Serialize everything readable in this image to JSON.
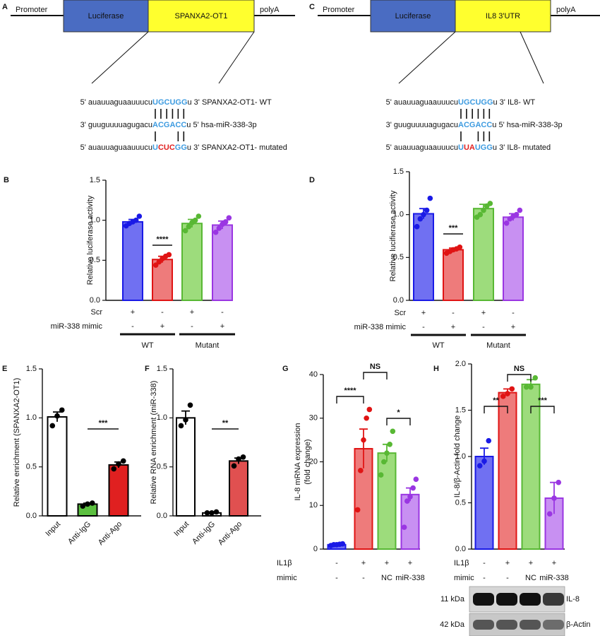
{
  "constructs": [
    {
      "label": "A",
      "promoter": "Promoter",
      "reporter": "Luciferase",
      "insert": "SPANXA2-OT1",
      "polyA": "polyA",
      "sequences": [
        {
          "prefix": "5' auauuaguaauuucu",
          "core": [
            {
              "text": "UGCUGG",
              "color": "#3d9be0"
            }
          ],
          "suffix": "u 3' SPANXA2-OT1- WT"
        },
        {
          "prefix": "3' guuguuuuagugacu",
          "core": [
            {
              "text": "ACGACC",
              "color": "#3d9be0"
            }
          ],
          "suffix": "u 5' hsa-miR-338-3p"
        },
        {
          "prefix": "5' auauuaguaauuucu",
          "core": [
            {
              "text": "U",
              "color": "#3d9be0"
            },
            {
              "text": "CUC",
              "color": "#e02020"
            },
            {
              "text": "GG",
              "color": "#3d9be0"
            }
          ],
          "suffix": "u 3' SPANXA2-OT1- mutated"
        }
      ]
    },
    {
      "label": "C",
      "promoter": "Promoter",
      "reporter": "Luciferase",
      "insert": "IL8 3'UTR",
      "polyA": "polyA",
      "sequences": [
        {
          "prefix": "5' auauuaguaauuucu",
          "core": [
            {
              "text": "UGCUGG",
              "color": "#3d9be0"
            }
          ],
          "suffix": "u 3' IL8- WT"
        },
        {
          "prefix": "3' guuguuuuagugacu",
          "core": [
            {
              "text": "ACGACC",
              "color": "#3d9be0"
            }
          ],
          "suffix": "u 5' hsa-miR-338-3p"
        },
        {
          "prefix": "5' auauuaguaauuucu",
          "core": [
            {
              "text": "U",
              "color": "#3d9be0"
            },
            {
              "text": "UA",
              "color": "#e02020"
            },
            {
              "text": "UGG",
              "color": "#3d9be0"
            }
          ],
          "suffix": "u 3' IL8- mutated"
        }
      ]
    }
  ],
  "chart_data": [
    {
      "type": "bar",
      "label": "B",
      "ylabel": [
        "Relative luciferase activity"
      ],
      "ylim": [
        0,
        1.5
      ],
      "yticks": [
        {
          "value": 0,
          "label": "0.0"
        },
        0.5,
        {
          "value": 1,
          "label": "1.0"
        },
        1.5
      ],
      "values": [
        0.98,
        0.51,
        0.96,
        0.94
      ],
      "errors": [
        0.03,
        0.04,
        0.05,
        0.05
      ],
      "points": [
        [
          0.93,
          0.96,
          0.98,
          1.0,
          1.05
        ],
        [
          0.44,
          0.48,
          0.52,
          0.55,
          0.57
        ],
        [
          0.87,
          0.92,
          0.97,
          1.0,
          1.05
        ],
        [
          0.85,
          0.9,
          0.95,
          0.98,
          1.03
        ]
      ],
      "colors": [
        "#7070f2",
        "#ee7b7b",
        "#9ddc7c",
        "#c890f2"
      ],
      "edgecolors": [
        "#1a1ae6",
        "#e01414",
        "#58b834",
        "#9a36e2"
      ],
      "annotations": [
        "****"
      ],
      "rows": [
        {
          "label": "Scr",
          "values": [
            "+",
            "-",
            "+",
            "-"
          ]
        },
        {
          "label": "miR-338 mimic",
          "values": [
            "-",
            "+",
            "-",
            "+"
          ]
        }
      ],
      "groups": [
        "WT",
        "Mutant"
      ]
    },
    {
      "type": "bar",
      "label": "D",
      "ylabel": [
        "Relative lucifierase activity"
      ],
      "ylim": [
        0,
        1.5
      ],
      "yticks": [
        {
          "value": 0,
          "label": "0.0"
        },
        0.5,
        {
          "value": 1,
          "label": "1.0"
        },
        1.5
      ],
      "values": [
        1.01,
        0.59,
        1.07,
        0.97
      ],
      "errors": [
        0.06,
        0.02,
        0.05,
        0.04
      ],
      "points": [
        [
          0.86,
          0.95,
          1.0,
          1.05,
          1.19
        ],
        [
          0.55,
          0.57,
          0.59,
          0.6,
          0.62
        ],
        [
          0.97,
          1.0,
          1.05,
          1.1,
          1.13
        ],
        [
          0.9,
          0.95,
          0.98,
          1.0,
          1.05
        ]
      ],
      "colors": [
        "#7070f2",
        "#ee7b7b",
        "#9ddc7c",
        "#c890f2"
      ],
      "edgecolors": [
        "#1a1ae6",
        "#e01414",
        "#58b834",
        "#9a36e2"
      ],
      "annotations": [
        "***"
      ],
      "rows": [
        {
          "label": "Scr",
          "values": [
            "+",
            "-",
            "+",
            "-"
          ]
        },
        {
          "label": "miR-338 mimic",
          "values": [
            "-",
            "+",
            "-",
            "+"
          ]
        }
      ],
      "groups": [
        "WT",
        "Mutant"
      ]
    },
    {
      "type": "bar",
      "label": "E",
      "ylabel": [
        "Relative enrichment (SPANXA2-OT1)"
      ],
      "ylim": [
        0,
        1.5
      ],
      "yticks": [
        {
          "value": 0,
          "label": "0.0"
        },
        0.5,
        {
          "value": 1,
          "label": "1.0"
        },
        1.5
      ],
      "categories": [
        "Input",
        "Anti-IgG",
        "Anti-Ago"
      ],
      "values": [
        1.01,
        0.12,
        0.52
      ],
      "errors": [
        0.05,
        0.01,
        0.03
      ],
      "points": [
        [
          0.92,
          1.02,
          1.08
        ],
        [
          0.1,
          0.12,
          0.13
        ],
        [
          0.48,
          0.53,
          0.56
        ]
      ],
      "colors": [
        "#ffffff",
        "#5cc040",
        "#e02020"
      ],
      "edgecolors": [
        "#000000",
        "#000000",
        "#000000"
      ],
      "annotations": [
        "***"
      ]
    },
    {
      "type": "bar",
      "label": "F",
      "ylabel": [
        "Relative RNA enrichment (miR-338)"
      ],
      "ylim": [
        0,
        1.5
      ],
      "yticks": [
        {
          "value": 0,
          "label": "0.0"
        },
        0.5,
        {
          "value": 1,
          "label": "1.0"
        },
        1.5
      ],
      "categories": [
        "Input",
        "Anti-IgG",
        "Anti-Ago"
      ],
      "values": [
        1.0,
        0.03,
        0.56
      ],
      "errors": [
        0.07,
        0.005,
        0.03
      ],
      "points": [
        [
          0.92,
          0.98,
          1.13
        ],
        [
          0.03,
          0.03,
          0.04
        ],
        [
          0.51,
          0.58,
          0.6
        ]
      ],
      "colors": [
        "#ffffff",
        "#ffffff",
        "#e05050"
      ],
      "edgecolors": [
        "#000000",
        "#000000",
        "#000000"
      ],
      "annotations": [
        "**"
      ]
    },
    {
      "type": "bar",
      "label": "G",
      "ylabel": [
        "IL-8 mRNA expression",
        "(fold change)"
      ],
      "ylim": [
        0,
        40
      ],
      "yticks": [
        0,
        10,
        20,
        30,
        40
      ],
      "values": [
        1.0,
        23,
        22,
        12.5
      ],
      "errors": [
        0.1,
        4.5,
        2,
        1.5
      ],
      "points": [
        [
          0.8,
          1.0,
          1.0,
          1.1,
          1.2
        ],
        [
          9,
          18,
          25,
          30,
          32
        ],
        [
          17,
          20,
          22,
          24,
          27
        ],
        [
          5,
          11,
          12,
          14,
          16
        ]
      ],
      "colors": [
        "#7070f2",
        "#ee7b7b",
        "#9ddc7c",
        "#c890f2"
      ],
      "edgecolors": [
        "#1a1ae6",
        "#e01414",
        "#58b834",
        "#9a36e2"
      ],
      "annotations": [
        "****",
        "NS",
        "*"
      ],
      "rows": [
        {
          "label": "IL1β",
          "values": [
            "-",
            "+",
            "+",
            "+"
          ]
        },
        {
          "label": "mimic",
          "values": [
            "-",
            "-",
            "NC",
            "miR-338"
          ]
        }
      ]
    },
    {
      "type": "bar",
      "label": "H",
      "ylabel": [
        "IL-8/β-Actin fold change"
      ],
      "ylim": [
        0,
        2
      ],
      "yticks": [
        {
          "value": 0,
          "label": "0.0"
        },
        0.5,
        {
          "value": 1,
          "label": "1.0"
        },
        1.5,
        {
          "value": 2,
          "label": "2.0"
        }
      ],
      "values": [
        1.0,
        1.69,
        1.78,
        0.55
      ],
      "errors": [
        0.09,
        0.04,
        0.05,
        0.17
      ],
      "points": [
        [
          0.9,
          0.95,
          1.17
        ],
        [
          1.65,
          1.68,
          1.73
        ],
        [
          1.75,
          1.75,
          1.85
        ],
        [
          0.38,
          0.55,
          0.72
        ]
      ],
      "colors": [
        "#7070f2",
        "#ee7b7b",
        "#9ddc7c",
        "#c890f2"
      ],
      "edgecolors": [
        "#1a1ae6",
        "#e01414",
        "#58b834",
        "#9a36e2"
      ],
      "annotations": [
        "**",
        "NS",
        "***"
      ],
      "rows": [
        {
          "label": "IL1β",
          "values": [
            "-",
            "+",
            "+",
            "+"
          ]
        },
        {
          "label": "mimic",
          "values": [
            "-",
            "-",
            "NC",
            "miR-338"
          ]
        }
      ]
    }
  ],
  "blot": {
    "bands": [
      {
        "size": "11 kDa",
        "name": "IL-8"
      },
      {
        "size": "42 kDa",
        "name": "β-Actin"
      }
    ]
  }
}
